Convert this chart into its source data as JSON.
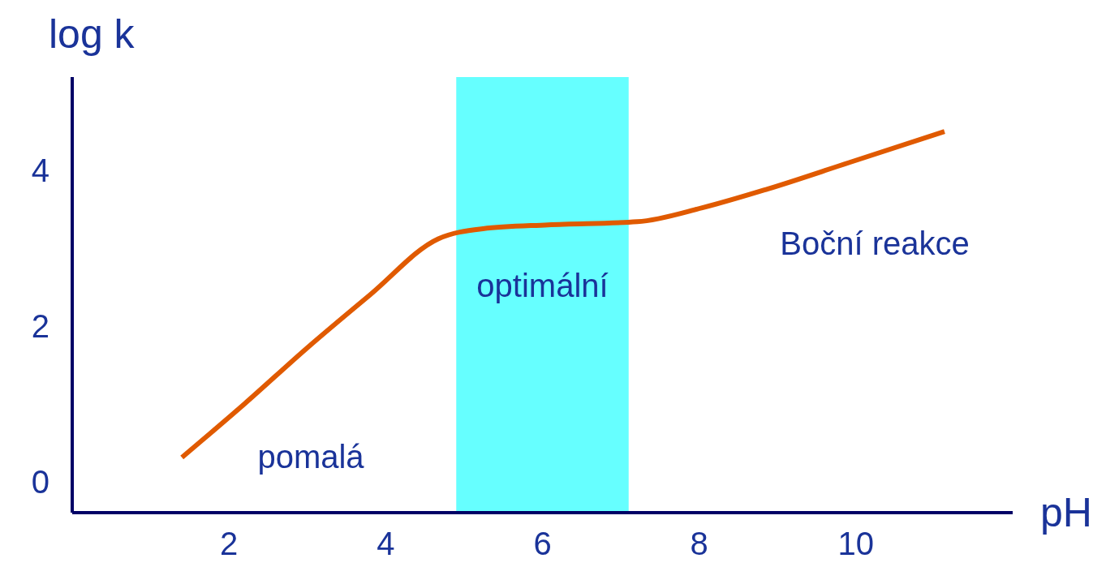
{
  "chart_data": {
    "type": "line",
    "xlabel": "pH",
    "ylabel": "log k",
    "xlim": [
      0,
      12
    ],
    "ylim": [
      -0.4,
      5.2
    ],
    "xticks": [
      2,
      4,
      6,
      8,
      10
    ],
    "yticks": [
      0,
      2,
      4
    ],
    "grid": false,
    "legend": false,
    "marker": "none",
    "line_style": "solid",
    "series": [
      {
        "color": "#e05a00",
        "x": [
          1.4,
          2.2,
          3.0,
          3.8,
          4.67,
          5.24,
          6.07,
          7.21,
          8.04,
          8.87,
          9.91,
          11.13
        ],
        "values": [
          0.31,
          1.0,
          1.72,
          2.4,
          3.12,
          3.25,
          3.3,
          3.34,
          3.52,
          3.76,
          4.1,
          4.5
        ]
      }
    ],
    "bands": [
      {
        "axis": "x",
        "from": 4.9,
        "to": 7.1,
        "label": "optimální",
        "color": "#66ffff"
      }
    ],
    "annotations": [
      "pomalá",
      "Boční reakce"
    ]
  }
}
